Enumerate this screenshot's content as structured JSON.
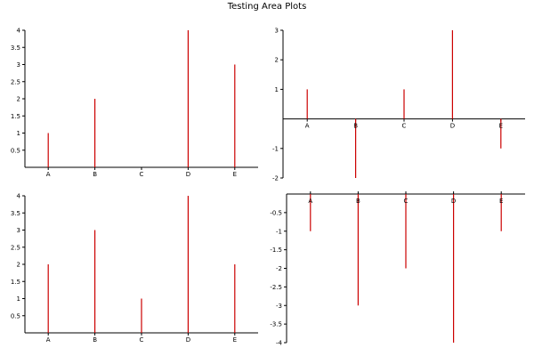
{
  "figure": {
    "title": "Testing Area Plots"
  },
  "colors": {
    "bar": "#cc0000",
    "axis": "#000000",
    "text": "#000000",
    "background": "#ffffff"
  },
  "chart_data": [
    {
      "type": "bar",
      "style": "spikes",
      "categories": [
        "A",
        "B",
        "C",
        "D",
        "E"
      ],
      "values": [
        1,
        2,
        0,
        4,
        3
      ],
      "ylim": [
        0,
        4
      ],
      "yticks": [
        0.5,
        1,
        1.5,
        2,
        2.5,
        3,
        3.5,
        4
      ],
      "ytick_labels": [
        "0.5",
        "1",
        "1.5",
        "2",
        "2.5",
        "3",
        "3.5",
        "4"
      ],
      "grid": false
    },
    {
      "type": "bar",
      "style": "spikes",
      "categories": [
        "A",
        "B",
        "C",
        "D",
        "E"
      ],
      "values": [
        1,
        -2,
        1,
        3,
        -1
      ],
      "ylim": [
        -2,
        3
      ],
      "yticks": [
        -2,
        -1,
        1,
        2,
        3
      ],
      "ytick_labels": [
        "-2",
        "-1",
        "1",
        "2",
        "3"
      ],
      "grid": false
    },
    {
      "type": "bar",
      "style": "spikes",
      "categories": [
        "A",
        "B",
        "C",
        "D",
        "E"
      ],
      "values": [
        2,
        3,
        1,
        4,
        2
      ],
      "ylim": [
        0,
        4
      ],
      "yticks": [
        0.5,
        1,
        1.5,
        2,
        2.5,
        3,
        3.5,
        4
      ],
      "ytick_labels": [
        "0.5",
        "1",
        "1.5",
        "2",
        "2.5",
        "3",
        "3.5",
        "4"
      ],
      "grid": false
    },
    {
      "type": "bar",
      "style": "spikes",
      "categories": [
        "A",
        "B",
        "C",
        "D",
        "E"
      ],
      "values": [
        -1,
        -3,
        -2,
        -4,
        -1
      ],
      "ylim": [
        -4,
        0
      ],
      "yticks": [
        -0.5,
        -1,
        -1.5,
        -2,
        -2.5,
        -3,
        -3.5,
        -4
      ],
      "ytick_labels": [
        "-0.5",
        "-1",
        "-1.5",
        "-2",
        "-2.5",
        "-3",
        "-3.5",
        "-4"
      ],
      "grid": false
    }
  ]
}
